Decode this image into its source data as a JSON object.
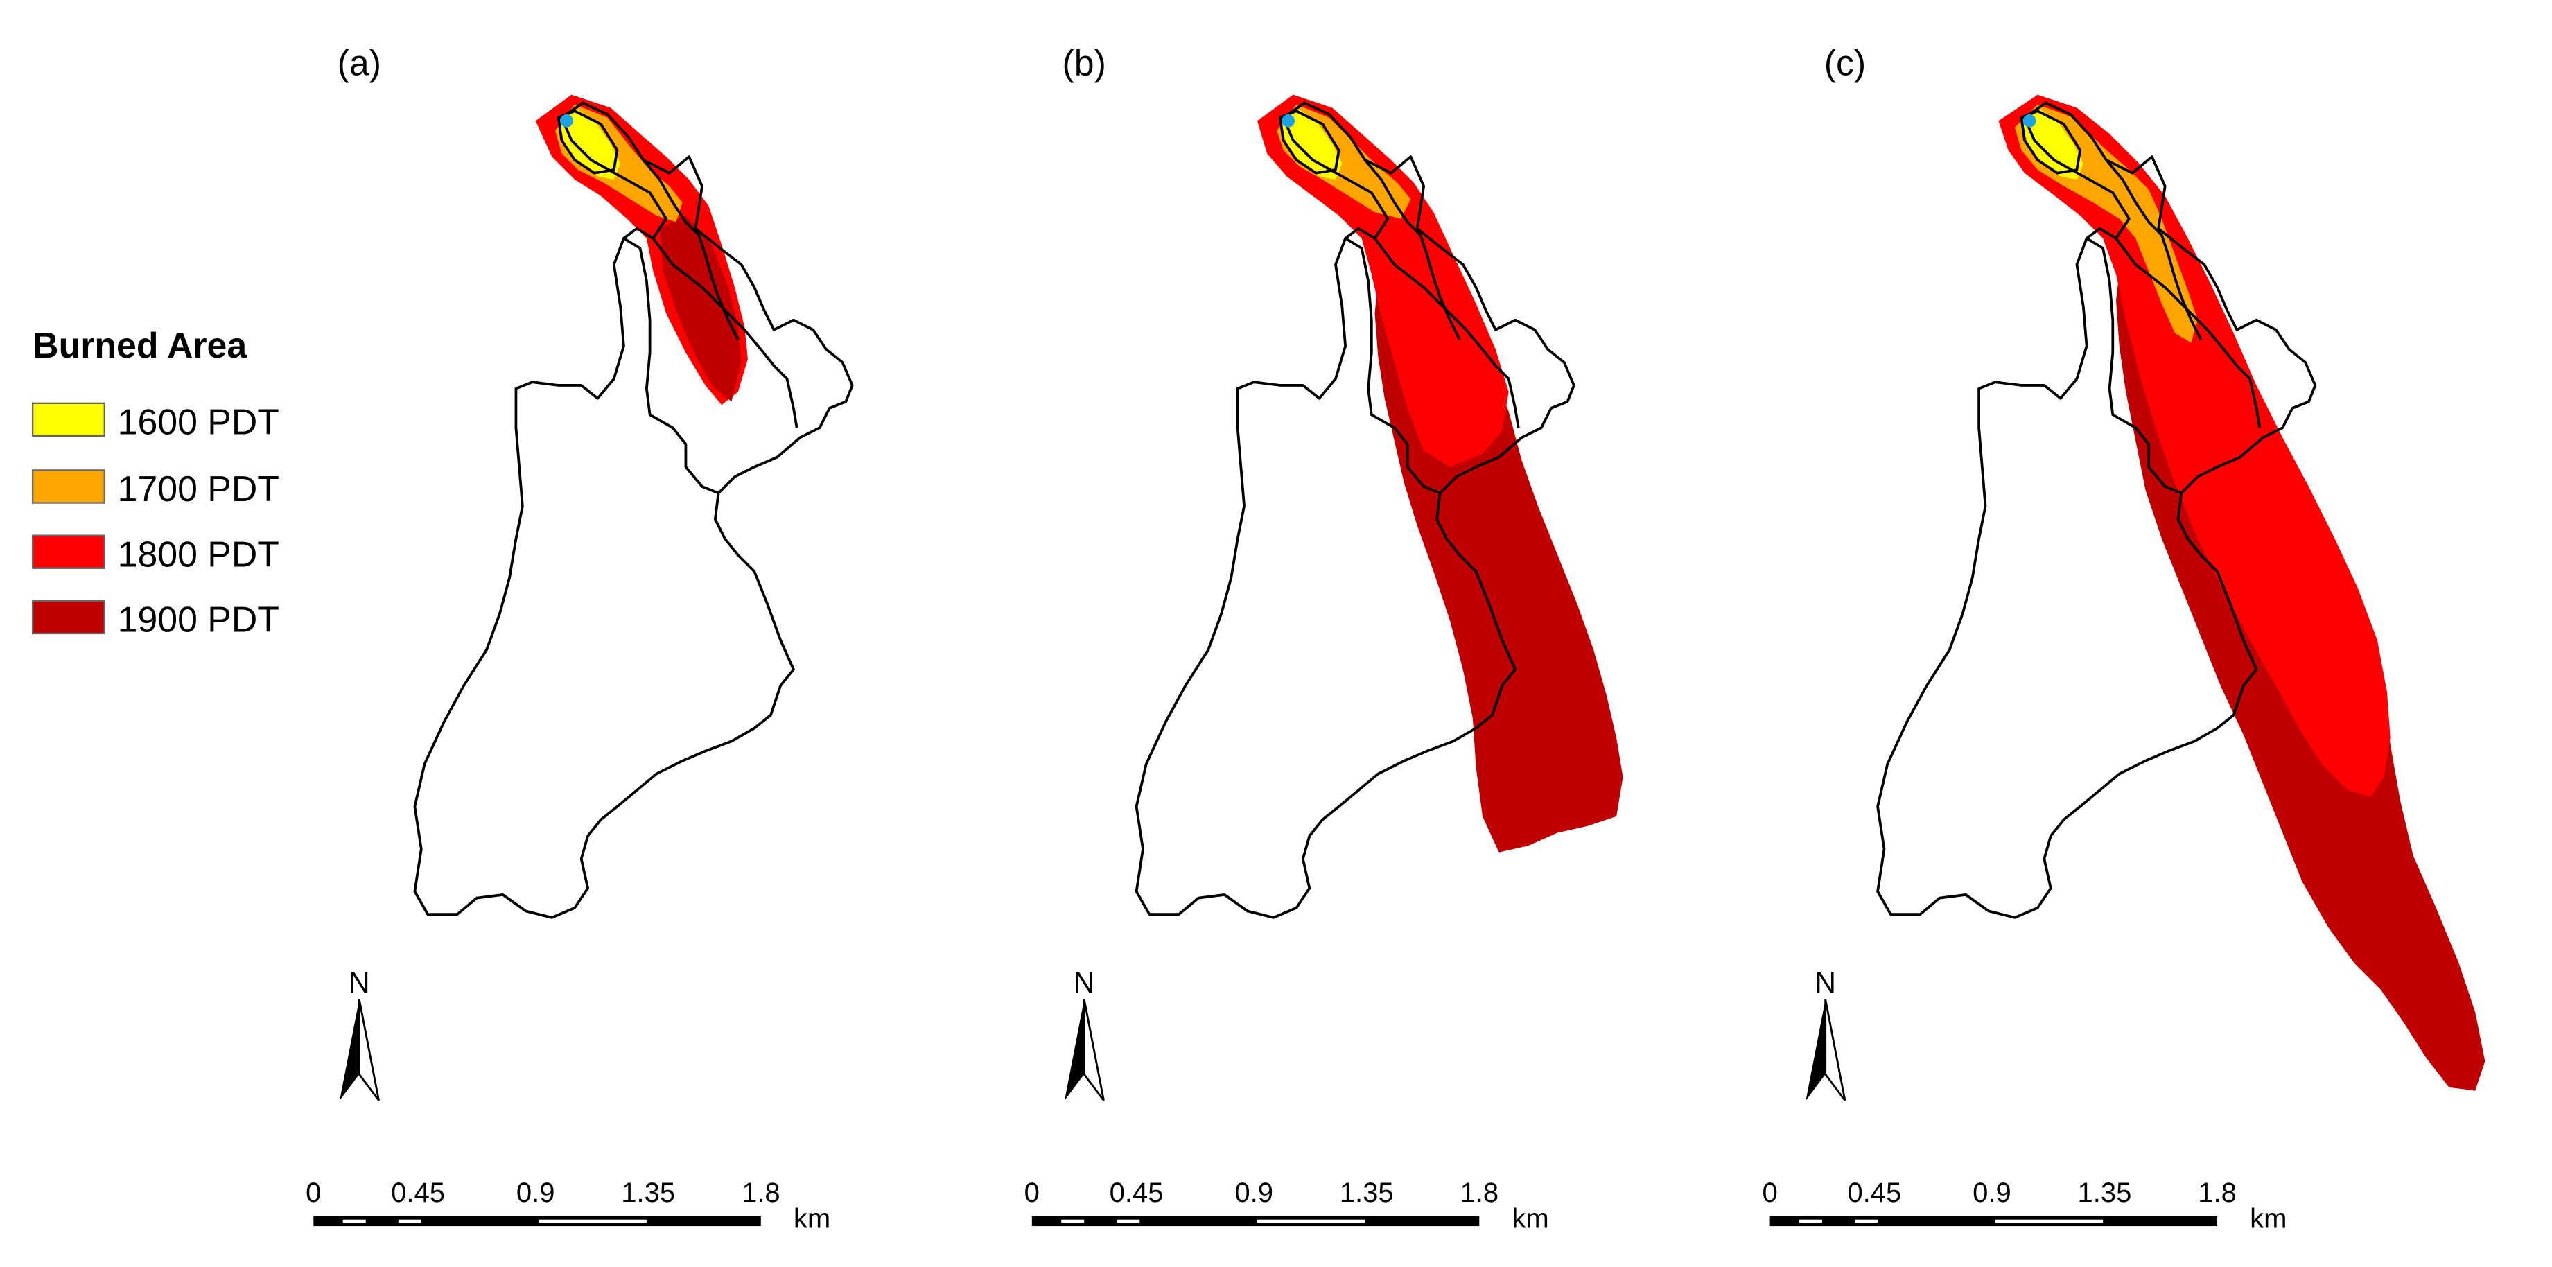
{
  "panels": [
    {
      "label": "(a)",
      "stage": 1
    },
    {
      "label": "(b)",
      "stage": 2
    },
    {
      "label": "(c)",
      "stage": 3
    }
  ],
  "legend": {
    "title": "Burned Area",
    "items": [
      {
        "label": "1600 PDT",
        "color": "#ffff00"
      },
      {
        "label": "1700 PDT",
        "color": "#ffa500"
      },
      {
        "label": "1800 PDT",
        "color": "#ff0000"
      },
      {
        "label": "1900 PDT",
        "color": "#c00000"
      }
    ]
  },
  "north_arrow": {
    "label": "N"
  },
  "scale_bar": {
    "ticks": [
      "0",
      "0.45",
      "0.9",
      "1.35",
      "1.8"
    ],
    "unit": "km"
  },
  "ignition_point_color": "#1ea0e6"
}
